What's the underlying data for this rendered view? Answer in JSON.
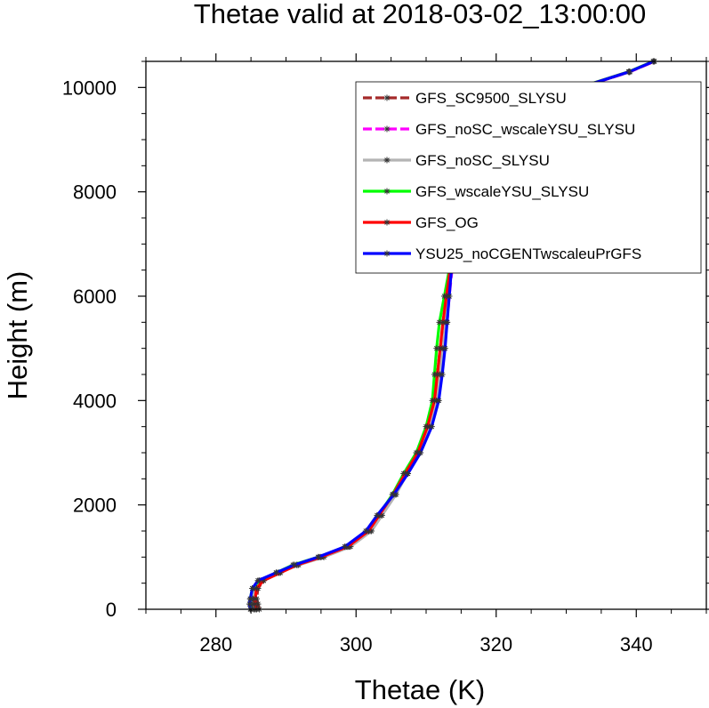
{
  "chart_data": {
    "type": "line",
    "title": "Thetae valid at 2018-03-02_13:00:00",
    "xlabel": "Thetae (K)",
    "ylabel": "Height (m)",
    "xlim": [
      270,
      350
    ],
    "ylim": [
      0,
      10500
    ],
    "x_ticks": [
      280,
      300,
      320,
      340
    ],
    "y_ticks": [
      0,
      2000,
      4000,
      6000,
      8000,
      10000
    ],
    "x_tick_labels": [
      "280",
      "300",
      "320",
      "340"
    ],
    "y_tick_labels": [
      "0",
      "2000",
      "4000",
      "6000",
      "8000",
      "10000"
    ],
    "grid": false,
    "legend_position": "top-right",
    "series": [
      {
        "name": "GFS_SC9500_SLYSU",
        "color": "#a52a2a",
        "dash": true,
        "points": [
          [
            286.2,
            0
          ],
          [
            286.0,
            100
          ],
          [
            285.8,
            200
          ],
          [
            286.0,
            400
          ],
          [
            286.8,
            550
          ],
          [
            289.0,
            700
          ],
          [
            291.5,
            850
          ],
          [
            295.0,
            1000
          ],
          [
            299.0,
            1200
          ],
          [
            302.0,
            1500
          ],
          [
            303.5,
            1800
          ],
          [
            305.5,
            2200
          ],
          [
            307.0,
            2600
          ],
          [
            308.8,
            3000
          ],
          [
            310.2,
            3500
          ],
          [
            311.2,
            4000
          ],
          [
            311.6,
            4500
          ],
          [
            312.0,
            5000
          ],
          [
            312.5,
            5500
          ],
          [
            313.0,
            6000
          ],
          [
            313.5,
            6500
          ],
          [
            314.5,
            7000
          ],
          [
            315.5,
            7500
          ],
          [
            316.2,
            8000
          ],
          [
            316.8,
            8500
          ],
          [
            318.0,
            9000
          ],
          [
            321.0,
            9300
          ],
          [
            326.0,
            9700
          ],
          [
            332.0,
            10000
          ],
          [
            339.0,
            10300
          ],
          [
            342.5,
            10500
          ]
        ]
      },
      {
        "name": "GFS_noSC_wscaleYSU_SLYSU",
        "color": "#ff00ff",
        "dash": true,
        "points": [
          [
            285.4,
            0
          ],
          [
            285.2,
            100
          ],
          [
            285.2,
            200
          ],
          [
            285.4,
            400
          ],
          [
            286.4,
            550
          ],
          [
            288.8,
            700
          ],
          [
            291.2,
            850
          ],
          [
            294.8,
            1000
          ],
          [
            298.8,
            1200
          ],
          [
            301.8,
            1500
          ],
          [
            303.4,
            1800
          ],
          [
            305.6,
            2200
          ],
          [
            307.3,
            2600
          ],
          [
            309.0,
            3000
          ],
          [
            310.6,
            3500
          ],
          [
            311.7,
            4000
          ],
          [
            312.2,
            4500
          ],
          [
            312.6,
            5000
          ],
          [
            313.0,
            5500
          ],
          [
            313.3,
            6000
          ],
          [
            313.7,
            6500
          ],
          [
            314.6,
            7000
          ],
          [
            315.6,
            7500
          ],
          [
            316.3,
            8000
          ],
          [
            316.9,
            8500
          ],
          [
            318.1,
            9000
          ],
          [
            321.1,
            9300
          ],
          [
            326.1,
            9700
          ],
          [
            332.1,
            10000
          ],
          [
            339.1,
            10300
          ],
          [
            342.6,
            10500
          ]
        ]
      },
      {
        "name": "GFS_noSC_SLYSU",
        "color": "#b4b4b4",
        "dash": false,
        "points": [
          [
            285.6,
            0
          ],
          [
            285.4,
            100
          ],
          [
            285.3,
            200
          ],
          [
            285.6,
            400
          ],
          [
            286.6,
            550
          ],
          [
            289.0,
            700
          ],
          [
            291.8,
            850
          ],
          [
            295.4,
            1000
          ],
          [
            299.2,
            1200
          ],
          [
            302.2,
            1500
          ],
          [
            303.7,
            1800
          ],
          [
            305.7,
            2200
          ],
          [
            307.3,
            2600
          ],
          [
            309.0,
            3000
          ],
          [
            310.5,
            3500
          ],
          [
            311.5,
            4000
          ],
          [
            312.0,
            4500
          ],
          [
            312.4,
            5000
          ],
          [
            312.8,
            5500
          ],
          [
            313.2,
            6000
          ],
          [
            313.6,
            6500
          ],
          [
            314.6,
            7000
          ],
          [
            315.6,
            7500
          ],
          [
            316.2,
            8000
          ],
          [
            316.8,
            8500
          ],
          [
            318.0,
            9000
          ],
          [
            321.0,
            9300
          ],
          [
            326.0,
            9700
          ],
          [
            332.0,
            10000
          ],
          [
            339.0,
            10300
          ],
          [
            342.5,
            10500
          ]
        ]
      },
      {
        "name": "GFS_wscaleYSU_SLYSU",
        "color": "#00ff00",
        "dash": false,
        "points": [
          [
            285.0,
            0
          ],
          [
            284.9,
            100
          ],
          [
            284.9,
            200
          ],
          [
            285.2,
            400
          ],
          [
            286.2,
            550
          ],
          [
            288.6,
            700
          ],
          [
            291.0,
            850
          ],
          [
            294.6,
            1000
          ],
          [
            298.6,
            1200
          ],
          [
            301.6,
            1500
          ],
          [
            303.2,
            1800
          ],
          [
            305.2,
            2200
          ],
          [
            306.8,
            2600
          ],
          [
            308.6,
            3000
          ],
          [
            310.0,
            3500
          ],
          [
            310.9,
            4000
          ],
          [
            311.2,
            4500
          ],
          [
            311.5,
            5000
          ],
          [
            311.9,
            5500
          ],
          [
            312.6,
            6000
          ],
          [
            313.3,
            6500
          ],
          [
            314.4,
            7000
          ],
          [
            315.4,
            7500
          ],
          [
            316.1,
            8000
          ],
          [
            316.7,
            8500
          ],
          [
            317.9,
            9000
          ],
          [
            320.9,
            9300
          ],
          [
            325.9,
            9700
          ],
          [
            331.9,
            10000
          ],
          [
            338.9,
            10300
          ],
          [
            342.4,
            10500
          ]
        ]
      },
      {
        "name": "GFS_OG",
        "color": "#ff0000",
        "dash": false,
        "points": [
          [
            285.8,
            0
          ],
          [
            285.6,
            100
          ],
          [
            285.6,
            200
          ],
          [
            285.8,
            400
          ],
          [
            286.8,
            550
          ],
          [
            289.2,
            700
          ],
          [
            291.6,
            850
          ],
          [
            295.0,
            1000
          ],
          [
            298.8,
            1200
          ],
          [
            301.8,
            1500
          ],
          [
            303.3,
            1800
          ],
          [
            305.3,
            2200
          ],
          [
            307.0,
            2600
          ],
          [
            308.8,
            3000
          ],
          [
            310.2,
            3500
          ],
          [
            311.2,
            4000
          ],
          [
            311.6,
            4500
          ],
          [
            312.0,
            5000
          ],
          [
            312.4,
            5500
          ],
          [
            312.9,
            6000
          ],
          [
            313.4,
            6500
          ],
          [
            314.5,
            7000
          ],
          [
            315.5,
            7500
          ],
          [
            316.2,
            8000
          ],
          [
            316.8,
            8500
          ],
          [
            318.0,
            9000
          ],
          [
            321.0,
            9300
          ],
          [
            326.0,
            9700
          ],
          [
            332.0,
            10000
          ],
          [
            339.0,
            10300
          ],
          [
            342.5,
            10500
          ]
        ]
      },
      {
        "name": "YSU25_noCGENTwscaleuPrGFS",
        "color": "#0000ff",
        "dash": false,
        "points": [
          [
            284.9,
            0
          ],
          [
            284.8,
            100
          ],
          [
            284.9,
            200
          ],
          [
            285.2,
            400
          ],
          [
            286.0,
            550
          ],
          [
            288.6,
            700
          ],
          [
            291.2,
            850
          ],
          [
            294.6,
            1000
          ],
          [
            298.4,
            1200
          ],
          [
            301.4,
            1500
          ],
          [
            303.0,
            1800
          ],
          [
            305.4,
            2200
          ],
          [
            307.4,
            2600
          ],
          [
            309.2,
            3000
          ],
          [
            310.8,
            3500
          ],
          [
            311.8,
            4000
          ],
          [
            312.3,
            4500
          ],
          [
            312.7,
            5000
          ],
          [
            313.0,
            5500
          ],
          [
            313.3,
            6000
          ],
          [
            313.6,
            6500
          ],
          [
            314.5,
            7000
          ],
          [
            315.5,
            7500
          ],
          [
            316.2,
            8000
          ],
          [
            316.8,
            8500
          ],
          [
            318.0,
            9000
          ],
          [
            321.0,
            9300
          ],
          [
            326.0,
            9700
          ],
          [
            332.0,
            10000
          ],
          [
            339.0,
            10300
          ],
          [
            342.5,
            10500
          ]
        ]
      }
    ]
  }
}
